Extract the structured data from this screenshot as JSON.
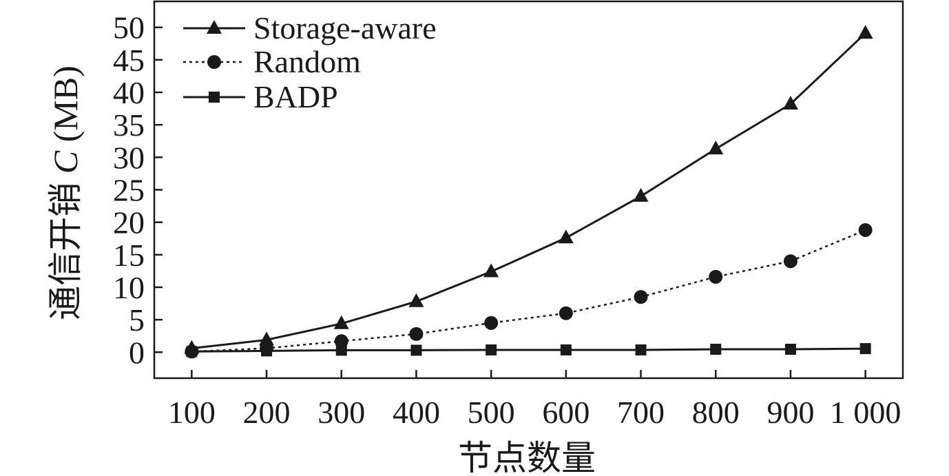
{
  "chart_data": {
    "type": "line",
    "title": "",
    "xlabel": "节点数量",
    "ylabel": "通信开销 C (MB)",
    "ylabel_prefix": "通信开销 ",
    "ylabel_var": "C",
    "ylabel_unit": " (MB)",
    "x": [
      100,
      200,
      300,
      400,
      500,
      600,
      700,
      800,
      900,
      1000
    ],
    "x_tick_labels": [
      "100",
      "200",
      "300",
      "400",
      "500",
      "600",
      "700",
      "800",
      "900",
      "1 000"
    ],
    "y_ticks": [
      0,
      5,
      10,
      15,
      20,
      25,
      30,
      35,
      40,
      45,
      50
    ],
    "xlim": [
      50,
      1050
    ],
    "ylim": [
      -4,
      54
    ],
    "grid": false,
    "legend_position": "top-left",
    "series": [
      {
        "name": "Storage-aware",
        "marker": "triangle",
        "line": "solid",
        "values": [
          0.6,
          1.9,
          4.4,
          7.8,
          12.4,
          17.6,
          24.0,
          31.3,
          38.2,
          49.1
        ]
      },
      {
        "name": "Random",
        "marker": "circle",
        "line": "dotted",
        "values": [
          0.1,
          0.6,
          1.7,
          2.8,
          4.5,
          6.0,
          8.5,
          11.6,
          14.0,
          18.8
        ]
      },
      {
        "name": "BADP",
        "marker": "square",
        "line": "solid",
        "values": [
          0.1,
          0.2,
          0.3,
          0.3,
          0.35,
          0.35,
          0.35,
          0.45,
          0.45,
          0.55
        ]
      }
    ]
  }
}
